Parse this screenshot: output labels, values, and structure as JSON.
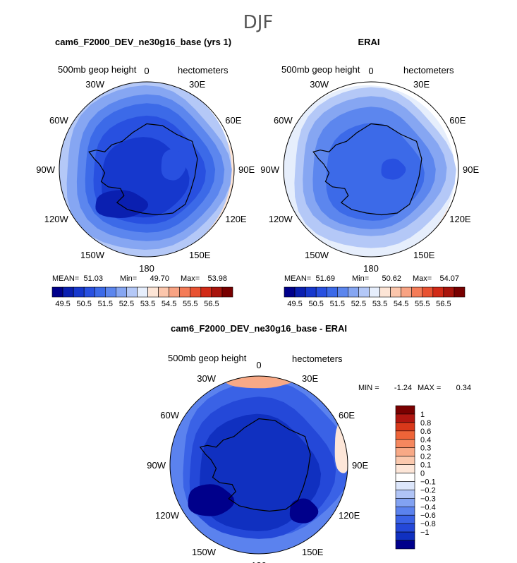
{
  "title": "DJF",
  "colors": {
    "seq": [
      "#00008b",
      "#0a1fb0",
      "#1638cd",
      "#2850e0",
      "#3c6ae8",
      "#5c86ee",
      "#86a6f2",
      "#b4c8f7",
      "#e6eefc",
      "#fde5d6",
      "#fbc6ac",
      "#f8a383",
      "#f47c58",
      "#e85232",
      "#d12a17",
      "#a8140c",
      "#780000"
    ],
    "diff": [
      "#00008b",
      "#1030c0",
      "#2448d8",
      "#3a62e6",
      "#5b82ee",
      "#82a2f2",
      "#b0c4f6",
      "#dce6fb",
      "#ffffff",
      "#fde6d8",
      "#fbc9ae",
      "#f8a986",
      "#f5875e",
      "#ee6438",
      "#d8381a",
      "#b01610",
      "#7a0000"
    ],
    "land": "#000000"
  },
  "longitude_labels": [
    "0",
    "30E",
    "60E",
    "90E",
    "120E",
    "150E",
    "180",
    "150W",
    "120W",
    "90W",
    "60W",
    "30W"
  ],
  "chart_data": [
    {
      "type": "polar-contour",
      "panel": "model",
      "title": "cam6_F2000_DEV_ne30g16_base (yrs 1)",
      "variable": "500mb geop height",
      "units": "hectometers",
      "stats": {
        "mean_label": "MEAN=",
        "mean": "51.03",
        "min_label": "Min=",
        "min": "49.70",
        "max_label": "Max=",
        "max": "53.98"
      },
      "levels": [
        49.5,
        50,
        50.5,
        51,
        51.5,
        52,
        52.5,
        53,
        53.5,
        54,
        54.5,
        55,
        55.5,
        56,
        56.5
      ],
      "colorbar_labels": [
        "49.5",
        "50.5",
        "51.5",
        "52.5",
        "53.5",
        "54.5",
        "55.5",
        "56.5"
      ]
    },
    {
      "type": "polar-contour",
      "panel": "obs",
      "title": "ERAI",
      "variable": "500mb geop height",
      "units": "hectometers",
      "stats": {
        "mean_label": "MEAN=",
        "mean": "51.69",
        "min_label": "Min=",
        "min": "50.62",
        "max_label": "Max=",
        "max": "54.07"
      },
      "levels": [
        49.5,
        50,
        50.5,
        51,
        51.5,
        52,
        52.5,
        53,
        53.5,
        54,
        54.5,
        55,
        55.5,
        56,
        56.5
      ],
      "colorbar_labels": [
        "49.5",
        "50.5",
        "51.5",
        "52.5",
        "53.5",
        "54.5",
        "55.5",
        "56.5"
      ]
    },
    {
      "type": "polar-contour",
      "panel": "difference",
      "title": "cam6_F2000_DEV_ne30g16_base - ERAI",
      "variable": "500mb geop height",
      "units": "hectometers",
      "stats": {
        "min_label": "MIN =",
        "min": "-1.24",
        "max_label": "MAX =",
        "max": "0.34"
      },
      "levels": [
        -1,
        -0.8,
        -0.6,
        -0.4,
        -0.3,
        -0.2,
        -0.1,
        0,
        0.1,
        0.2,
        0.3,
        0.4,
        0.6,
        0.8,
        1
      ],
      "colorbar_labels": [
        "1",
        "0.8",
        "0.6",
        "0.4",
        "0.3",
        "0.2",
        "0.1",
        "0",
        "−0.1",
        "−0.2",
        "−0.3",
        "−0.4",
        "−0.6",
        "−0.8",
        "−1"
      ]
    }
  ]
}
